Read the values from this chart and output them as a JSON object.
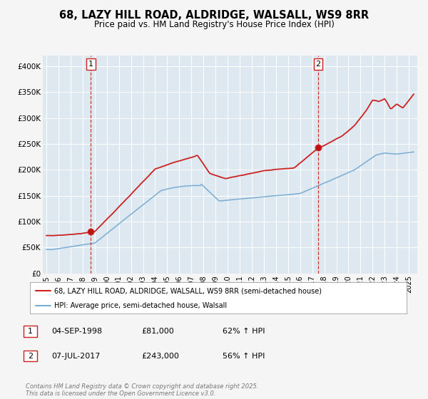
{
  "title": "68, LAZY HILL ROAD, ALDRIDGE, WALSALL, WS9 8RR",
  "subtitle": "Price paid vs. HM Land Registry's House Price Index (HPI)",
  "title_fontsize": 10.5,
  "subtitle_fontsize": 8.5,
  "background_color": "#f5f5f5",
  "plot_bg_color": "#dde8f0",
  "grid_color": "#ffffff",
  "red_color": "#cc2222",
  "blue_color": "#7aadd4",
  "ylim": [
    0,
    420000
  ],
  "yticks": [
    0,
    50000,
    100000,
    150000,
    200000,
    250000,
    300000,
    350000,
    400000
  ],
  "ytick_labels": [
    "£0",
    "£50K",
    "£100K",
    "£150K",
    "£200K",
    "£250K",
    "£300K",
    "£350K",
    "£400K"
  ],
  "marker1_x": 1998.67,
  "marker1_y": 81000,
  "marker2_x": 2017.5,
  "marker2_y": 243000,
  "vline1_x": 1998.67,
  "vline2_x": 2017.5,
  "legend_label_red": "68, LAZY HILL ROAD, ALDRIDGE, WALSALL, WS9 8RR (semi-detached house)",
  "legend_label_blue": "HPI: Average price, semi-detached house, Walsall",
  "sale1_date": "04-SEP-1998",
  "sale1_price": "£81,000",
  "sale1_hpi": "62% ↑ HPI",
  "sale2_date": "07-JUL-2017",
  "sale2_price": "£243,000",
  "sale2_hpi": "56% ↑ HPI",
  "footer": "Contains HM Land Registry data © Crown copyright and database right 2025.\nThis data is licensed under the Open Government Licence v3.0.",
  "xlim_start": 1994.7,
  "xlim_end": 2025.7,
  "xtick_years": [
    1995,
    1996,
    1997,
    1998,
    1999,
    2000,
    2001,
    2002,
    2003,
    2004,
    2005,
    2006,
    2007,
    2008,
    2009,
    2010,
    2011,
    2012,
    2013,
    2014,
    2015,
    2016,
    2017,
    2018,
    2019,
    2020,
    2021,
    2022,
    2023,
    2024,
    2025
  ]
}
